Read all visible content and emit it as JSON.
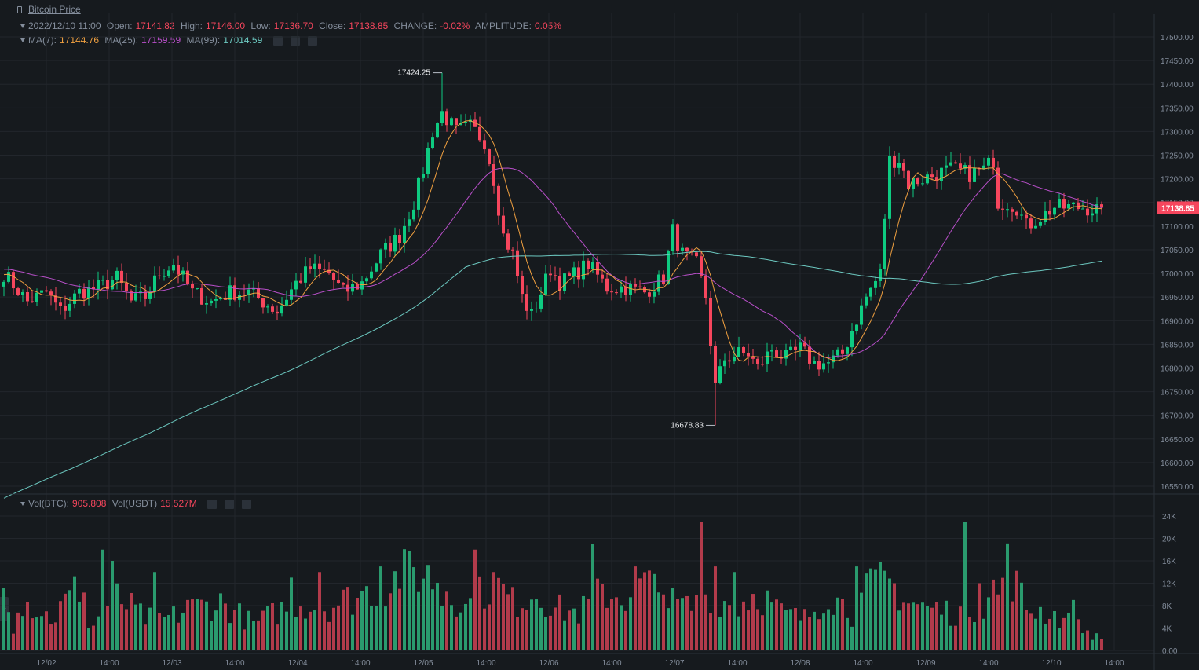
{
  "title": "Bitcoin Price",
  "ohlc_header": {
    "date": "2022/12/10 11:00",
    "open_label": "Open:",
    "open": "17141.82",
    "high_label": "High:",
    "high": "17146.00",
    "low_label": "Low:",
    "low": "17136.70",
    "close_label": "Close:",
    "close": "17138.85",
    "change_label": "CHANGE:",
    "change": "-0.02%",
    "amplitude_label": "AMPLITUDE:",
    "amplitude": "0.05%"
  },
  "ma_header": {
    "ma7_label": "MA(7):",
    "ma7": "17144.76",
    "ma25_label": "MA(25):",
    "ma25": "17159.59",
    "ma99_label": "MA(99):",
    "ma99": "17014.59"
  },
  "vol_header": {
    "btc_label": "Vol(BTC):",
    "btc": "905.808",
    "usdt_label": "Vol(USDT)",
    "usdt": "15.527M"
  },
  "colors": {
    "up": "#0ecb81",
    "down": "#f6465d",
    "ma7": "#f0a040",
    "ma25": "#b84fc9",
    "ma99": "#6cc8c0",
    "background": "#161a1e",
    "grid": "#22262c"
  },
  "chart_data": {
    "type": "candlestick",
    "price_axis": {
      "min": 16530,
      "max": 17520,
      "ticks": [
        "16550.00",
        "16600.00",
        "16650.00",
        "16700.00",
        "16750.00",
        "16800.00",
        "16850.00",
        "16900.00",
        "16950.00",
        "17000.00",
        "17050.00",
        "17100.00",
        "17150.00",
        "17200.00",
        "17250.00",
        "17300.00",
        "17350.00",
        "17400.00",
        "17450.00",
        "17500.00"
      ]
    },
    "volume_axis": {
      "min": 0,
      "max": 25000,
      "ticks": [
        "0.00",
        "4K",
        "8K",
        "12K",
        "16K",
        "20K",
        "24K"
      ]
    },
    "time_labels": [
      "12/02",
      "14:00",
      "12/03",
      "14:00",
      "12/04",
      "14:00",
      "12/05",
      "14:00",
      "12/06",
      "14:00",
      "12/07",
      "14:00",
      "12/08",
      "14:00",
      "12/09",
      "14:00",
      "12/10",
      "14:00"
    ],
    "last_price": "17138.85",
    "annotations": {
      "high_label": "17424.25",
      "high_value": 17424.25,
      "high_index": 93,
      "low_label": "16678.83",
      "low_value": 16678.83,
      "low_index": 151
    },
    "close_anchors": [
      [
        0,
        17000
      ],
      [
        5,
        16940
      ],
      [
        9,
        16960
      ],
      [
        12,
        16920
      ],
      [
        16,
        16960
      ],
      [
        20,
        16970
      ],
      [
        24,
        16990
      ],
      [
        27,
        16940
      ],
      [
        30,
        16950
      ],
      [
        33,
        17000
      ],
      [
        36,
        17020
      ],
      [
        40,
        16960
      ],
      [
        44,
        16940
      ],
      [
        48,
        16960
      ],
      [
        52,
        16960
      ],
      [
        55,
        16940
      ],
      [
        58,
        16920
      ],
      [
        62,
        16980
      ],
      [
        65,
        17010
      ],
      [
        69,
        17000
      ],
      [
        72,
        16960
      ],
      [
        76,
        16980
      ],
      [
        80,
        17040
      ],
      [
        84,
        17080
      ],
      [
        87,
        17150
      ],
      [
        89,
        17220
      ],
      [
        91,
        17300
      ],
      [
        93,
        17340
      ],
      [
        96,
        17300
      ],
      [
        99,
        17310
      ],
      [
        102,
        17280
      ],
      [
        104,
        17200
      ],
      [
        106,
        17080
      ],
      [
        108,
        17040
      ],
      [
        110,
        16950
      ],
      [
        112,
        16910
      ],
      [
        114,
        16960
      ],
      [
        116,
        17010
      ],
      [
        118,
        16980
      ],
      [
        120,
        16990
      ],
      [
        124,
        17020
      ],
      [
        128,
        16970
      ],
      [
        132,
        16970
      ],
      [
        136,
        16960
      ],
      [
        140,
        16990
      ],
      [
        142,
        17090
      ],
      [
        144,
        17040
      ],
      [
        147,
        17020
      ],
      [
        149,
        16950
      ],
      [
        151,
        16760
      ],
      [
        153,
        16820
      ],
      [
        156,
        16830
      ],
      [
        158,
        16830
      ],
      [
        160,
        16800
      ],
      [
        163,
        16840
      ],
      [
        166,
        16820
      ],
      [
        169,
        16840
      ],
      [
        172,
        16810
      ],
      [
        175,
        16810
      ],
      [
        178,
        16830
      ],
      [
        180,
        16880
      ],
      [
        183,
        16950
      ],
      [
        186,
        17000
      ],
      [
        188,
        17240
      ],
      [
        190,
        17240
      ],
      [
        192,
        17190
      ],
      [
        195,
        17200
      ],
      [
        198,
        17210
      ],
      [
        201,
        17220
      ],
      [
        205,
        17210
      ],
      [
        208,
        17220
      ],
      [
        210,
        17240
      ],
      [
        211,
        17150
      ],
      [
        213,
        17150
      ],
      [
        215,
        17140
      ],
      [
        217,
        17100
      ],
      [
        220,
        17120
      ],
      [
        223,
        17140
      ],
      [
        226,
        17140
      ],
      [
        229,
        17140
      ],
      [
        232,
        17135
      ],
      [
        233,
        17138.85
      ]
    ],
    "volume_anchors": [
      [
        0,
        12000
      ],
      [
        10,
        6000
      ],
      [
        17,
        13000
      ],
      [
        18,
        4000
      ],
      [
        24,
        10000
      ],
      [
        30,
        6000
      ],
      [
        35,
        6000
      ],
      [
        40,
        8000
      ],
      [
        46,
        9000
      ],
      [
        53,
        5000
      ],
      [
        62,
        9000
      ],
      [
        68,
        8000
      ],
      [
        74,
        10000
      ],
      [
        80,
        12000
      ],
      [
        87,
        15000
      ],
      [
        93,
        13000
      ],
      [
        98,
        8000
      ],
      [
        104,
        13000
      ],
      [
        108,
        9000
      ],
      [
        113,
        11000
      ],
      [
        117,
        8000
      ],
      [
        122,
        7000
      ],
      [
        127,
        11000
      ],
      [
        132,
        10000
      ],
      [
        136,
        13000
      ],
      [
        141,
        9000
      ],
      [
        146,
        8000
      ],
      [
        150,
        11000
      ],
      [
        155,
        8000
      ],
      [
        160,
        11000
      ],
      [
        165,
        7000
      ],
      [
        170,
        6000
      ],
      [
        175,
        11000
      ],
      [
        180,
        7000
      ],
      [
        184,
        12000
      ],
      [
        188,
        13000
      ],
      [
        192,
        9000
      ],
      [
        197,
        8000
      ],
      [
        202,
        7000
      ],
      [
        208,
        9000
      ],
      [
        213,
        16000
      ],
      [
        217,
        8000
      ],
      [
        222,
        7000
      ],
      [
        227,
        5000
      ],
      [
        233,
        2000
      ]
    ],
    "volume_spikes": [
      [
        2,
        3000
      ],
      [
        11,
        5000
      ],
      [
        21,
        18000
      ],
      [
        23,
        16000
      ],
      [
        32,
        14000
      ],
      [
        39,
        9000
      ],
      [
        61,
        13000
      ],
      [
        67,
        14000
      ],
      [
        80,
        15000
      ],
      [
        84,
        11000
      ],
      [
        93,
        8000
      ],
      [
        100,
        18000
      ],
      [
        104,
        14000
      ],
      [
        125,
        19000
      ],
      [
        134,
        15000
      ],
      [
        140,
        10000
      ],
      [
        148,
        23000
      ],
      [
        151,
        15000
      ],
      [
        155,
        14000
      ],
      [
        181,
        15000
      ],
      [
        189,
        12000
      ],
      [
        196,
        8000
      ],
      [
        204,
        23000
      ],
      [
        207,
        12000
      ],
      [
        211,
        10000
      ],
      [
        227,
        9000
      ]
    ],
    "series_count": 234
  }
}
